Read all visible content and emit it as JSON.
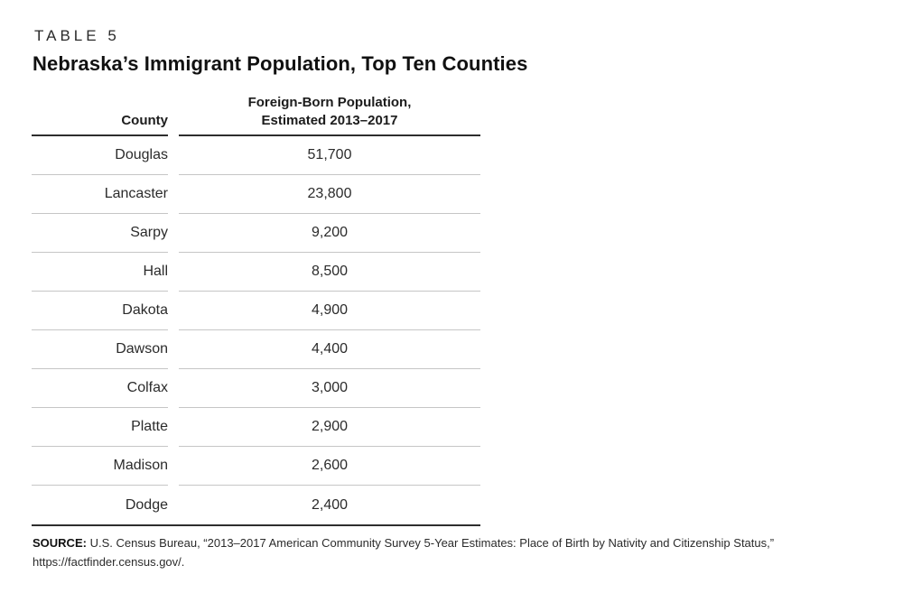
{
  "page": {
    "table_label": "TABLE 5",
    "title": "Nebraska’s Immigrant Population, Top Ten Counties"
  },
  "table": {
    "header": {
      "county": "County",
      "population_line1": "Foreign-Born Population,",
      "population_line2": "Estimated 2013–2017"
    },
    "rows": [
      {
        "county": "Douglas",
        "population": "51,700"
      },
      {
        "county": "Lancaster",
        "population": "23,800"
      },
      {
        "county": "Sarpy",
        "population": "9,200"
      },
      {
        "county": "Hall",
        "population": "8,500"
      },
      {
        "county": "Dakota",
        "population": "4,900"
      },
      {
        "county": "Dawson",
        "population": "4,400"
      },
      {
        "county": "Colfax",
        "population": "3,000"
      },
      {
        "county": "Platte",
        "population": "2,900"
      },
      {
        "county": "Madison",
        "population": "2,600"
      },
      {
        "county": "Dodge",
        "population": "2,400"
      }
    ]
  },
  "source": {
    "label": "SOURCE:",
    "text": "U.S. Census Bureau, “2013–2017 American Community Survey 5-Year Estimates: Place of Birth by Nativity and Citizenship Status,”",
    "line2": "https://factfinder.census.gov/."
  },
  "colors": {
    "text": "#2b2b2b",
    "rule_dark": "#2e2e2e",
    "rule_light": "#c6c6c6",
    "background": "#ffffff"
  },
  "chart_data": {
    "type": "table",
    "title": "Nebraska’s Immigrant Population, Top Ten Counties",
    "columns": [
      "County",
      "Foreign-Born Population, Estimated 2013–2017"
    ],
    "categories": [
      "Douglas",
      "Lancaster",
      "Sarpy",
      "Hall",
      "Dakota",
      "Dawson",
      "Colfax",
      "Platte",
      "Madison",
      "Dodge"
    ],
    "values": [
      51700,
      23800,
      9200,
      8500,
      4900,
      4400,
      3000,
      2900,
      2600,
      2400
    ]
  }
}
